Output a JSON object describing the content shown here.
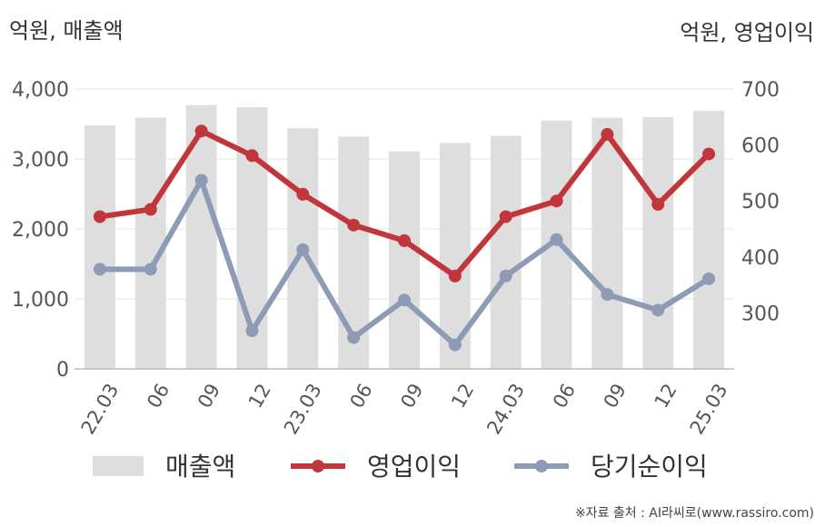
{
  "chart_data": {
    "type": "bar+line",
    "left_axis_unit": "억원, 매출액",
    "right_axis_unit": "억원, 영업이익",
    "categories": [
      "22.03",
      "06",
      "09",
      "12",
      "23.03",
      "06",
      "09",
      "12",
      "24.03",
      "06",
      "09",
      "12",
      "25.03"
    ],
    "left_axis": {
      "range": [
        0,
        4000
      ],
      "ticks": [
        0,
        1000,
        2000,
        3000,
        4000
      ],
      "tick_labels": [
        "0",
        "1,000",
        "2,000",
        "3,000",
        "4,000"
      ]
    },
    "right_axis": {
      "range": [
        200,
        700
      ],
      "ticks": [
        300,
        400,
        500,
        600,
        700
      ],
      "tick_labels": [
        "300",
        "400",
        "500",
        "600",
        "700"
      ]
    },
    "grid": true,
    "legend_position": "bottom",
    "series": [
      {
        "name": "매출액",
        "kind": "bar",
        "axis": "left",
        "color": "#dedede",
        "values": [
          3480,
          3590,
          3770,
          3740,
          3440,
          3320,
          3110,
          3230,
          3330,
          3550,
          3590,
          3600,
          3690
        ]
      },
      {
        "name": "영업이익",
        "kind": "line",
        "axis": "right",
        "color": "#c0363a",
        "values": [
          472,
          485,
          625,
          581,
          512,
          457,
          429,
          366,
          472,
          500,
          619,
          494,
          584
        ]
      },
      {
        "name": "당기순이익",
        "kind": "line",
        "axis": "right",
        "color": "#8e9bb5",
        "values": [
          378,
          378,
          537,
          268,
          413,
          256,
          323,
          243,
          366,
          431,
          333,
          305,
          361
        ]
      }
    ]
  },
  "source": "※자료 출처 : AI라씨로(www.rassiro.com)"
}
